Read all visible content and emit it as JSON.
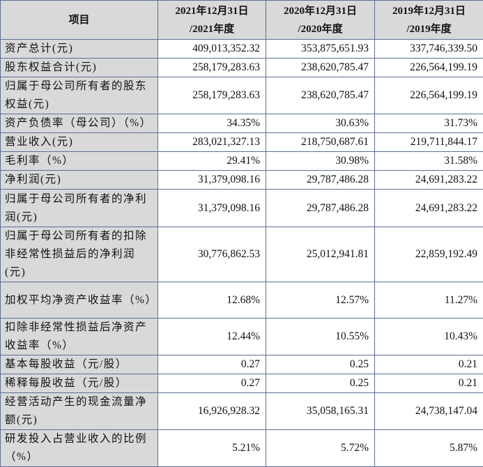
{
  "header": {
    "item": "项目",
    "columns": [
      {
        "line1": "2021年12月31日",
        "line2": "/2021年度"
      },
      {
        "line1": "2020年12月31日",
        "line2": "/2020年度"
      },
      {
        "line1": "2019年12月31日",
        "line2": "/2019年度"
      }
    ]
  },
  "rows": [
    {
      "label": "资产总计(元)",
      "values": [
        "409,013,352.32",
        "353,875,651.93",
        "337,746,339.50"
      ]
    },
    {
      "label": "股东权益合计(元)",
      "values": [
        "258,179,283.63",
        "238,620,785.47",
        "226,564,199.19"
      ]
    },
    {
      "label": "归属于母公司所有者的股东权益(元)",
      "values": [
        "258,179,283.63",
        "238,620,785.47",
        "226,564,199.19"
      ]
    },
    {
      "label": "资产负债率（母公司）（%）",
      "values": [
        "34.35%",
        "30.63%",
        "31.73%"
      ]
    },
    {
      "label": "营业收入(元)",
      "values": [
        "283,021,327.13",
        "218,750,687.61",
        "219,711,844.17"
      ]
    },
    {
      "label": "毛利率（%）",
      "values": [
        "29.41%",
        "30.98%",
        "31.58%"
      ]
    },
    {
      "label": "净利润(元)",
      "values": [
        "31,379,098.16",
        "29,787,486.28",
        "24,691,283.22"
      ]
    },
    {
      "label": "归属于母公司所有者的净利润(元)",
      "values": [
        "31,379,098.16",
        "29,787,486.28",
        "24,691,283.22"
      ]
    },
    {
      "label": "归属于母公司所有者的扣除非经常性损益后的净利润(元)",
      "values": [
        "30,776,862.53",
        "25,012,941.81",
        "22,859,192.49"
      ]
    },
    {
      "label": "加权平均净资产收益率（%）",
      "values": [
        "12.68%",
        "12.57%",
        "11.27%"
      ]
    },
    {
      "label": "扣除非经常性损益后净资产收益率（%）",
      "values": [
        "12.44%",
        "10.55%",
        "10.43%"
      ]
    },
    {
      "label": "基本每股收益（元/股）",
      "values": [
        "0.27",
        "0.25",
        "0.21"
      ]
    },
    {
      "label": "稀释每股收益（元/股）",
      "values": [
        "0.27",
        "0.25",
        "0.21"
      ]
    },
    {
      "label": "经营活动产生的现金流量净额(元)",
      "values": [
        "16,926,928.32",
        "35,058,165.31",
        "24,738,147.04"
      ]
    },
    {
      "label": "研发投入占营业收入的比例（%）",
      "values": [
        "5.21%",
        "5.72%",
        "5.87%"
      ]
    }
  ]
}
